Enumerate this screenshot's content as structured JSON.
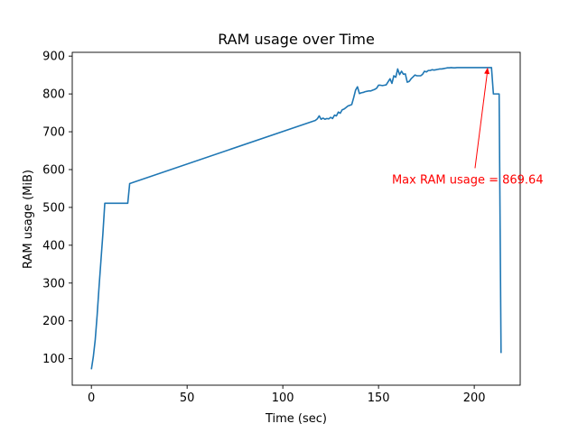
{
  "chart_data": {
    "type": "line",
    "title": "RAM usage over Time",
    "xlabel": "Time (sec)",
    "ylabel": "RAM usage (MiB)",
    "xlim": [
      -10,
      224
    ],
    "ylim": [
      30,
      910
    ],
    "xticks": [
      0,
      50,
      100,
      150,
      200
    ],
    "yticks": [
      100,
      200,
      300,
      400,
      500,
      600,
      700,
      800,
      900
    ],
    "grid": false,
    "line_color": "#1f77b4",
    "annotation_color": "#ff0000",
    "series": [
      {
        "x": [
          0,
          1,
          2,
          3,
          4,
          5,
          6,
          7,
          8,
          9,
          10,
          11,
          12,
          13,
          14,
          15,
          16,
          17,
          18,
          19,
          20,
          117,
          118,
          119,
          120,
          121,
          122,
          123,
          124,
          125,
          126,
          127,
          128,
          129,
          130,
          131,
          132,
          133,
          134,
          135,
          136,
          137,
          138,
          139,
          140,
          141,
          142,
          143,
          144,
          145,
          146,
          147,
          148,
          149,
          150,
          151,
          152,
          153,
          154,
          155,
          156,
          157,
          158,
          159,
          160,
          161,
          162,
          163,
          164,
          165,
          166,
          167,
          168,
          169,
          170,
          171,
          172,
          173,
          174,
          175,
          176,
          177,
          178,
          179,
          180,
          181,
          182,
          183,
          184,
          185,
          186,
          187,
          188,
          189,
          190,
          191,
          192,
          193,
          194,
          195,
          196,
          197,
          198,
          199,
          200,
          201,
          202,
          203,
          204,
          205,
          206,
          207,
          208,
          209,
          210,
          211,
          212,
          213,
          214
        ],
        "y": [
          72,
          105,
          150,
          215,
          290,
          360,
          430,
          511,
          511,
          511,
          511,
          511,
          511,
          511,
          511,
          511,
          511,
          511,
          511,
          511,
          563,
          730,
          734,
          742,
          733,
          736,
          733,
          735,
          734,
          738,
          735,
          744,
          742,
          752,
          749,
          758,
          760,
          764,
          768,
          770,
          772,
          790,
          810,
          819,
          801,
          803,
          804,
          806,
          807,
          808,
          808,
          810,
          812,
          815,
          823,
          823,
          822,
          823,
          824,
          832,
          840,
          828,
          848,
          844,
          866,
          851,
          860,
          852,
          853,
          831,
          833,
          840,
          845,
          850,
          848,
          848,
          848,
          852,
          860,
          858,
          862,
          862,
          864,
          863,
          864,
          865,
          866,
          866,
          867,
          868,
          869,
          869,
          869.64,
          869,
          869,
          869.64,
          869.64,
          869.64,
          869.64,
          869.64,
          869.64,
          869.64,
          869.64,
          869.64,
          869.64,
          869.64,
          869.64,
          869.64,
          869.64,
          869.64,
          869.64,
          869.64,
          869.64,
          869.64,
          800,
          800,
          800,
          800,
          115
        ]
      }
    ],
    "annotation": {
      "text": "Max RAM usage = 869.64",
      "point": [
        207,
        869.64
      ],
      "text_pos": [
        157,
        575
      ]
    }
  }
}
